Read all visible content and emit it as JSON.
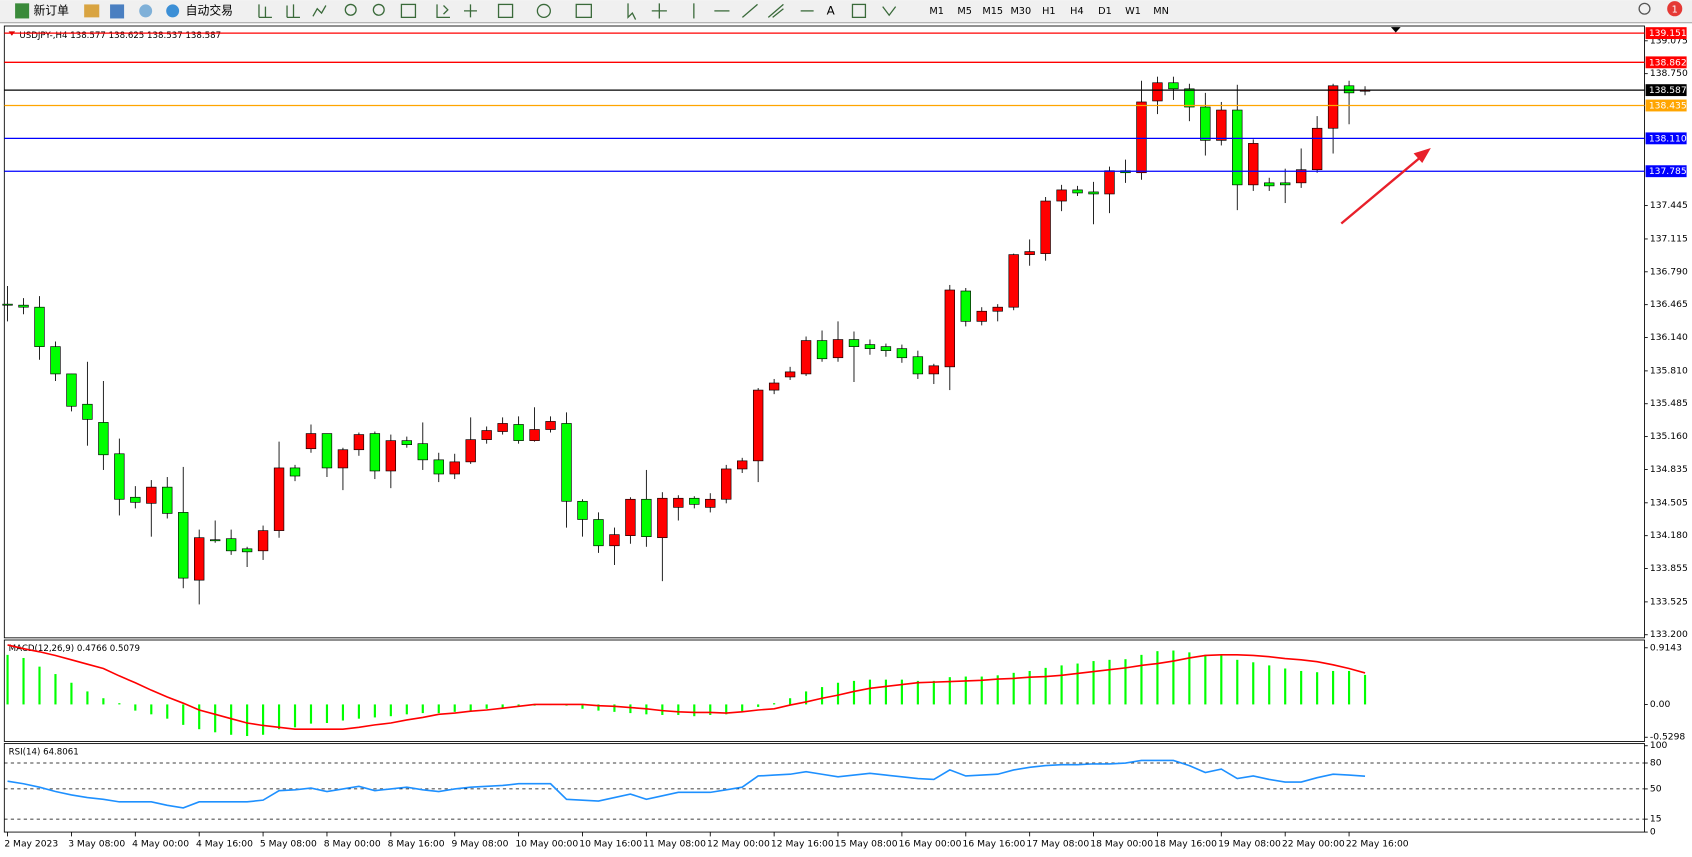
{
  "toolbar": {
    "new_order": "新订单",
    "auto_trade": "自动交易",
    "timeframes": [
      "M1",
      "M5",
      "M15",
      "M30",
      "H1",
      "H4",
      "D1",
      "W1",
      "MN"
    ],
    "badge": "1"
  },
  "chart_data": [
    {
      "type": "candlestick",
      "title": "USDJPY-,H4  138.577 138.625 138.537 138.587",
      "categories": [
        "2 May 2023",
        null,
        null,
        null,
        "3 May 08:00",
        null,
        null,
        null,
        "4 May 00:00",
        null,
        null,
        null,
        "4 May 16:00",
        null,
        null,
        null,
        "5 May 08:00",
        null,
        null,
        null,
        "8 May 00:00",
        null,
        null,
        null,
        "8 May 16:00",
        null,
        null,
        null,
        "9 May 08:00",
        null,
        null,
        null,
        "10 May 00:00",
        null,
        null,
        null,
        "10 May 16:00",
        null,
        null,
        null,
        "11 May 08:00",
        null,
        null,
        null,
        "12 May 00:00",
        null,
        null,
        null,
        "12 May 16:00",
        null,
        null,
        null,
        "15 May 08:00",
        null,
        null,
        null,
        "16 May 00:00",
        null,
        null,
        null,
        "16 May 16:00",
        null,
        null,
        null,
        "17 May 08:00",
        null,
        null,
        null,
        "18 May 00:00",
        null,
        null,
        null,
        "18 May 16:00",
        null,
        null,
        null,
        "19 May 08:00",
        null,
        null,
        null,
        "22 May 00:00",
        null,
        null,
        null,
        "22 May 16:00",
        null
      ],
      "open": [
        136.47,
        136.46,
        136.44,
        136.05,
        135.78,
        135.48,
        135.3,
        134.99,
        134.56,
        134.5,
        134.66,
        134.41,
        133.74,
        134.14,
        134.15,
        134.05,
        134.03,
        134.23,
        134.85,
        135.04,
        135.19,
        134.85,
        135.03,
        135.19,
        134.82,
        135.12,
        135.09,
        134.93,
        134.79,
        134.91,
        135.13,
        135.21,
        135.28,
        135.12,
        135.23,
        135.29,
        134.52,
        134.34,
        134.08,
        134.18,
        134.54,
        134.16,
        134.46,
        134.55,
        134.46,
        134.54,
        134.84,
        134.92,
        135.62,
        135.75,
        135.78,
        136.11,
        135.94,
        136.12,
        136.07,
        136.05,
        136.03,
        135.95,
        135.78,
        135.85,
        136.6,
        136.3,
        136.4,
        136.44,
        136.96,
        136.97,
        137.49,
        137.6,
        137.58,
        137.56,
        137.79,
        137.77,
        138.48,
        138.66,
        138.6,
        138.42,
        138.09,
        138.39,
        137.65,
        137.67,
        137.67,
        137.67,
        137.8,
        138.21,
        138.63,
        138.577
      ],
      "high": [
        136.65,
        136.53,
        136.55,
        136.1,
        135.78,
        135.9,
        135.71,
        135.14,
        134.67,
        134.73,
        134.76,
        134.86,
        134.24,
        134.33,
        134.24,
        134.07,
        134.28,
        135.11,
        134.88,
        135.28,
        135.19,
        135.05,
        135.2,
        135.21,
        135.18,
        135.16,
        135.3,
        135.0,
        134.99,
        135.35,
        135.26,
        135.35,
        135.36,
        135.45,
        135.36,
        135.4,
        134.54,
        134.41,
        134.26,
        134.56,
        134.83,
        134.61,
        134.58,
        134.57,
        134.6,
        134.88,
        134.95,
        135.64,
        135.73,
        135.85,
        136.15,
        136.21,
        136.3,
        136.2,
        136.12,
        136.08,
        136.07,
        136.01,
        135.88,
        136.66,
        136.63,
        136.44,
        136.47,
        136.97,
        137.11,
        137.53,
        137.65,
        137.64,
        137.68,
        137.83,
        137.9,
        138.68,
        138.72,
        138.72,
        138.65,
        138.56,
        138.47,
        138.64,
        138.1,
        137.72,
        137.81,
        138.01,
        138.33,
        138.65,
        138.68,
        138.625
      ],
      "low": [
        136.3,
        136.37,
        135.92,
        135.71,
        135.41,
        135.07,
        134.83,
        134.38,
        134.45,
        134.17,
        134.35,
        133.66,
        133.5,
        134.11,
        133.99,
        133.87,
        133.94,
        134.16,
        134.72,
        135.0,
        134.76,
        134.63,
        134.97,
        134.74,
        134.65,
        135.05,
        134.83,
        134.71,
        134.74,
        134.89,
        135.09,
        135.18,
        135.09,
        135.11,
        135.2,
        134.26,
        134.17,
        134.01,
        133.89,
        134.1,
        134.07,
        133.73,
        134.33,
        134.45,
        134.41,
        134.5,
        134.8,
        134.71,
        135.58,
        135.72,
        135.76,
        135.9,
        135.9,
        135.7,
        135.97,
        135.95,
        135.89,
        135.73,
        135.68,
        135.62,
        136.25,
        136.26,
        136.3,
        136.41,
        136.85,
        136.9,
        137.39,
        137.54,
        137.26,
        137.37,
        137.67,
        137.7,
        138.35,
        138.49,
        138.28,
        137.94,
        138.04,
        137.4,
        137.59,
        137.59,
        137.47,
        137.62,
        137.77,
        137.96,
        138.25,
        138.537
      ],
      "close": [
        136.46,
        136.44,
        136.05,
        135.78,
        135.46,
        135.33,
        134.98,
        134.54,
        134.51,
        134.66,
        134.4,
        133.76,
        134.16,
        134.13,
        134.03,
        134.02,
        134.23,
        134.85,
        134.77,
        135.19,
        134.85,
        135.03,
        135.18,
        134.82,
        135.12,
        135.08,
        134.93,
        134.79,
        134.91,
        135.13,
        135.22,
        135.29,
        135.12,
        135.23,
        135.31,
        134.52,
        134.34,
        134.08,
        134.19,
        134.54,
        134.17,
        134.55,
        134.55,
        134.49,
        134.54,
        134.84,
        134.92,
        135.62,
        135.69,
        135.8,
        136.11,
        135.93,
        136.12,
        136.05,
        136.03,
        136.01,
        135.94,
        135.78,
        135.86,
        136.61,
        136.3,
        136.4,
        136.44,
        136.96,
        136.99,
        137.49,
        137.6,
        137.57,
        137.56,
        137.79,
        137.77,
        138.47,
        138.66,
        138.6,
        138.42,
        138.09,
        138.39,
        137.65,
        138.06,
        137.64,
        137.65,
        137.8,
        138.21,
        138.63,
        138.56,
        138.587
      ],
      "up_color": "#ff0000",
      "down_color": "#00ff00",
      "ylim": [
        133.18,
        139.2
      ],
      "yticks": [
        {
          "value": 133.2,
          "label": "133.200"
        },
        133.525,
        133.855,
        {
          "value": 134.18,
          "label": "134.180"
        },
        134.505,
        134.835,
        {
          "value": 135.16,
          "label": "135.160"
        },
        135.485,
        {
          "value": 135.81,
          "label": "135.810"
        },
        {
          "value": 136.14,
          "label": "136.140"
        },
        136.465,
        {
          "value": 136.79,
          "label": "136.790"
        },
        137.115,
        137.445,
        {
          "value": 138.75,
          "label": "138.750"
        },
        139.075
      ],
      "levels": [
        {
          "value": 139.151,
          "color": "#ff0000"
        },
        {
          "value": 138.862,
          "color": "#ff0000"
        },
        {
          "value": 138.587,
          "color": "#000000"
        },
        {
          "value": 138.435,
          "color": "#ffa500"
        },
        {
          "value": 138.11,
          "label": "138.110",
          "color": "#0000ff"
        },
        {
          "value": 137.785,
          "color": "#0000ff"
        }
      ]
    },
    {
      "type": "macd",
      "title": "MACD(12,26,9) 0.4766 0.5079",
      "series": [
        {
          "kind": "bar",
          "color": "#00ff00",
          "values": [
            0.8,
            0.75,
            0.61,
            0.49,
            0.35,
            0.21,
            0.1,
            0.02,
            -0.1,
            -0.16,
            -0.23,
            -0.33,
            -0.4,
            -0.45,
            -0.49,
            -0.51,
            -0.49,
            -0.4,
            -0.37,
            -0.31,
            -0.3,
            -0.26,
            -0.23,
            -0.21,
            -0.19,
            -0.16,
            -0.14,
            -0.14,
            -0.12,
            -0.1,
            -0.07,
            -0.05,
            -0.04,
            -0.02,
            -0.01,
            -0.02,
            -0.07,
            -0.1,
            -0.12,
            -0.14,
            -0.16,
            -0.17,
            -0.17,
            -0.19,
            -0.17,
            -0.16,
            -0.12,
            -0.04,
            0.02,
            0.1,
            0.21,
            0.28,
            0.35,
            0.38,
            0.4,
            0.4,
            0.4,
            0.38,
            0.38,
            0.44,
            0.45,
            0.45,
            0.47,
            0.51,
            0.54,
            0.59,
            0.63,
            0.66,
            0.7,
            0.72,
            0.73,
            0.8,
            0.86,
            0.87,
            0.84,
            0.8,
            0.79,
            0.72,
            0.68,
            0.63,
            0.58,
            0.54,
            0.52,
            0.54,
            0.54,
            0.4766
          ]
        },
        {
          "kind": "line",
          "color": "#ff0000",
          "values": [
            0.96,
            0.9,
            0.85,
            0.79,
            0.72,
            0.65,
            0.58,
            0.46,
            0.35,
            0.23,
            0.12,
            0.02,
            -0.09,
            -0.16,
            -0.23,
            -0.3,
            -0.34,
            -0.37,
            -0.4,
            -0.4,
            -0.4,
            -0.4,
            -0.37,
            -0.33,
            -0.3,
            -0.25,
            -0.21,
            -0.16,
            -0.14,
            -0.11,
            -0.09,
            -0.06,
            -0.03,
            0,
            0,
            0,
            0,
            -0.02,
            -0.03,
            -0.05,
            -0.07,
            -0.1,
            -0.12,
            -0.13,
            -0.13,
            -0.14,
            -0.12,
            -0.09,
            -0.07,
            -0.01,
            0.04,
            0.1,
            0.15,
            0.21,
            0.26,
            0.29,
            0.32,
            0.35,
            0.36,
            0.37,
            0.38,
            0.39,
            0.41,
            0.42,
            0.44,
            0.45,
            0.47,
            0.5,
            0.53,
            0.56,
            0.59,
            0.63,
            0.66,
            0.7,
            0.75,
            0.79,
            0.8,
            0.8,
            0.79,
            0.77,
            0.74,
            0.72,
            0.69,
            0.64,
            0.58,
            0.5079
          ]
        }
      ],
      "ylim": [
        -0.58,
        1.04
      ],
      "yticks": [
        0.9143,
        {
          "value": 0,
          "label": "0.00"
        },
        -0.5298
      ]
    },
    {
      "type": "rsi",
      "title": "RSI(14) 64.8061",
      "series": [
        {
          "kind": "line",
          "color": "#1e90ff",
          "values": [
            59,
            56,
            52,
            47,
            43,
            40,
            38,
            35,
            35,
            35,
            31,
            28,
            35,
            35,
            35,
            35,
            37,
            48,
            49,
            51,
            47,
            50,
            53,
            48,
            50,
            52,
            49,
            47,
            50,
            52,
            53,
            54,
            56,
            56,
            56,
            38,
            37,
            36,
            40,
            44,
            38,
            42,
            46,
            46,
            46,
            49,
            52,
            65,
            66,
            67,
            70,
            67,
            64,
            66,
            68,
            66,
            64,
            62,
            61,
            72,
            65,
            66,
            67,
            72,
            75,
            77,
            78,
            78,
            79,
            79,
            80,
            83,
            83,
            83,
            77,
            69,
            73,
            62,
            65,
            61,
            58,
            58,
            63,
            67,
            66,
            64.8061
          ]
        }
      ],
      "ylim": [
        0,
        100
      ],
      "yticks": [
        100,
        80,
        50,
        15,
        0
      ],
      "levels": [
        80,
        50,
        15
      ]
    }
  ]
}
